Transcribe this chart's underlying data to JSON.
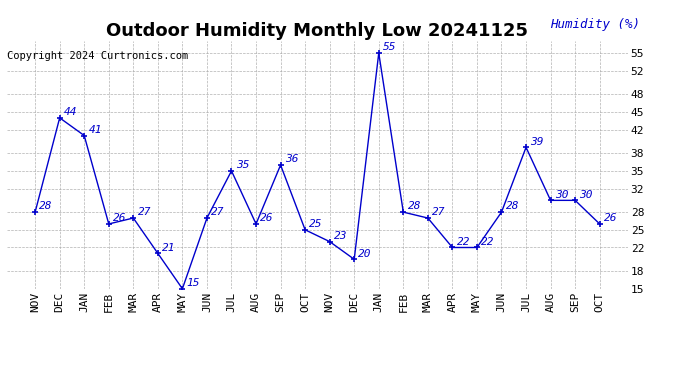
{
  "title": "Outdoor Humidity Monthly Low 20241125",
  "copyright": "Copyright 2024 Curtronics.com",
  "humidity_label": "Humidity (%)",
  "labels": [
    "NOV",
    "DEC",
    "JAN",
    "FEB",
    "MAR",
    "APR",
    "MAY",
    "JUN",
    "JUL",
    "AUG",
    "SEP",
    "OCT",
    "NOV",
    "DEC",
    "JAN",
    "FEB",
    "MAR",
    "APR",
    "MAY",
    "JUN",
    "JUL",
    "AUG",
    "SEP",
    "OCT"
  ],
  "values": [
    28,
    44,
    41,
    26,
    27,
    21,
    15,
    27,
    35,
    26,
    36,
    25,
    23,
    20,
    55,
    28,
    27,
    22,
    22,
    28,
    39,
    30,
    30,
    26
  ],
  "ylim_min": 15,
  "ylim_max": 57,
  "yticks": [
    15,
    18,
    22,
    25,
    28,
    32,
    35,
    38,
    42,
    45,
    48,
    52,
    55
  ],
  "line_color": "#0000cc",
  "bg_color": "#ffffff",
  "grid_color": "#aaaaaa",
  "title_fontsize": 13,
  "tick_fontsize": 8,
  "annotation_fontsize": 8,
  "copyright_fontsize": 7.5,
  "humidity_label_fontsize": 9
}
